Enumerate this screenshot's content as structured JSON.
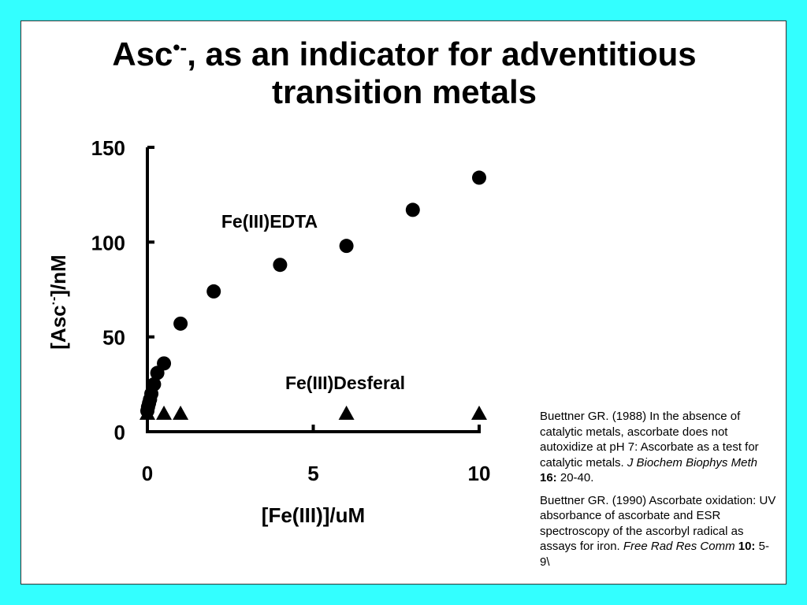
{
  "slide": {
    "title_line1_prefix": "Asc",
    "title_line1_sup": "•-",
    "title_line1_suffix": ", as an indicator for adventitious",
    "title_line2": "transition metals"
  },
  "chart_data": {
    "type": "scatter",
    "xlabel": "[Fe(III)]/uM",
    "ylabel_prefix": "[Asc",
    "ylabel_sup": "·-",
    "ylabel_suffix": "]/nM",
    "xlim": [
      0,
      10
    ],
    "ylim": [
      0,
      150
    ],
    "xticks": [
      0,
      5,
      10
    ],
    "yticks": [
      0,
      50,
      100,
      150
    ],
    "grid": false,
    "series": [
      {
        "name": "Fe(III)EDTA",
        "marker": "circle",
        "x": [
          0.0,
          0.02,
          0.05,
          0.08,
          0.12,
          0.2,
          0.3,
          0.5,
          1.0,
          2.0,
          4.0,
          6.0,
          8.0,
          10.0
        ],
        "y": [
          11,
          13,
          15,
          17,
          20,
          25,
          31,
          36,
          57,
          74,
          88,
          98,
          117,
          134
        ]
      },
      {
        "name": "Fe(III)Desferal",
        "marker": "triangle",
        "x": [
          0.0,
          0.5,
          1.0,
          6.0,
          10.0
        ],
        "y": [
          10,
          10,
          10,
          10,
          10
        ]
      }
    ],
    "colors": {
      "marker": "#000000",
      "axis": "#000000"
    }
  },
  "references": [
    {
      "text1": "Buettner GR. (1988) In the absence of catalytic metals, ascorbate does not autoxidize at pH 7:  Ascorbate as a test for catalytic metals.  ",
      "journal": "J Biochem Biophys Meth",
      "volume": "16:",
      "pages": " 20-40."
    },
    {
      "text1": "Buettner GR. (1990) Ascorbate oxidation: UV absorbance of ascorbate and ESR spectroscopy of the ascorbyl radical as assays for iron.  ",
      "journal": "Free Rad Res Comm",
      "volume": "10:",
      "pages": " 5-9\\"
    }
  ],
  "colors": {
    "background": "#33ffff",
    "panel": "#ffffff"
  }
}
